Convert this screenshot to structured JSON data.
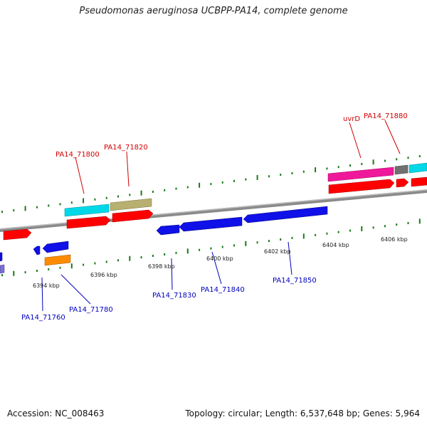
{
  "title": "Pseudomonas aeruginosa UCBPP-PA14, complete genome",
  "footer": {
    "accession": "Accession: NC_008463",
    "summary": "Topology: circular; Length: 6,537,648 bp; Genes: 5,964"
  },
  "scale_labels": [
    "6394 kbp",
    "6396 kbp",
    "6398 kbp",
    "6400 kbp",
    "6402 kbp",
    "6404 kbp",
    "6406 kbp"
  ],
  "gene_labels_top": [
    "PA14_71800",
    "PA14_71820",
    "uvrD",
    "PA14_71880"
  ],
  "gene_labels_bottom": [
    "PA14_71760",
    "PA14_71780",
    "PA14_71830",
    "PA14_71840",
    "PA14_71850"
  ],
  "colors": {
    "top_label": "#d00000",
    "bottom_label": "#0000c0",
    "backbone": "#8a8a8a",
    "tick": "#1a7a1a",
    "red": "#ff0000",
    "blue": "#1010e8",
    "cyan": "#00d8e8",
    "olive": "#b8b070",
    "magenta": "#f0189a",
    "gray": "#707070",
    "orange": "#ff8c00",
    "purple": "#7a70d0"
  }
}
